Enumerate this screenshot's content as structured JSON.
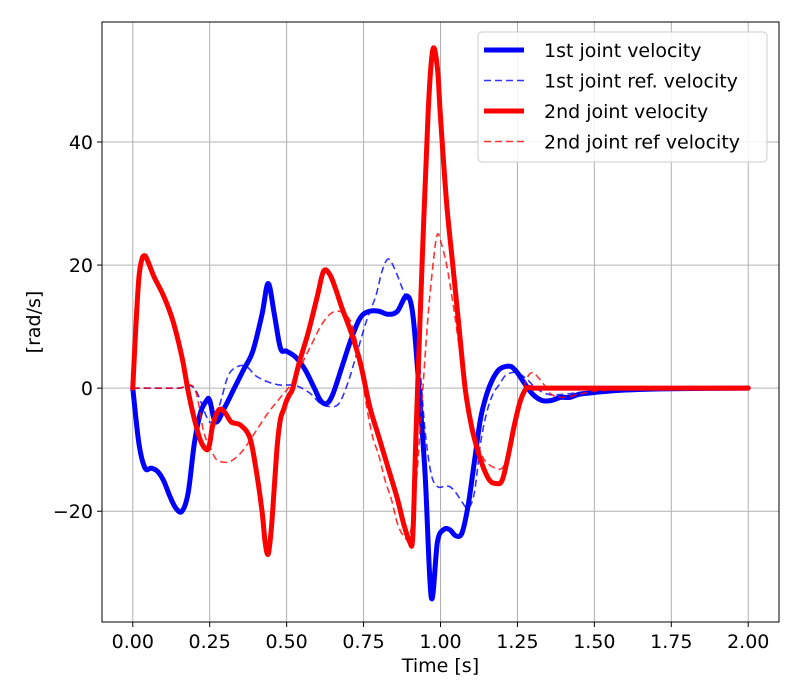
{
  "chart_data": {
    "type": "line",
    "title": "",
    "xlabel": "Time [s]",
    "ylabel": "[rad/s]",
    "xlim": [
      -0.1,
      2.1
    ],
    "ylim": [
      -38,
      59.5
    ],
    "xticks": [
      0.0,
      0.25,
      0.5,
      0.75,
      1.0,
      1.25,
      1.5,
      1.75,
      2.0
    ],
    "xtick_labels": [
      "0.00",
      "0.25",
      "0.50",
      "0.75",
      "1.00",
      "1.25",
      "1.50",
      "1.75",
      "2.00"
    ],
    "yticks": [
      -20,
      0,
      20,
      40
    ],
    "ytick_labels": [
      "−20",
      "0",
      "20",
      "40"
    ],
    "grid": true,
    "legend_position": "top-right",
    "series": [
      {
        "name": "1st joint velocity",
        "color": "#0000ff",
        "style": "solid",
        "x": [
          0.0,
          0.02,
          0.04,
          0.06,
          0.08,
          0.1,
          0.12,
          0.14,
          0.16,
          0.18,
          0.2,
          0.22,
          0.24,
          0.25,
          0.27,
          0.3,
          0.33,
          0.36,
          0.39,
          0.42,
          0.44,
          0.46,
          0.48,
          0.5,
          0.53,
          0.56,
          0.59,
          0.61,
          0.63,
          0.65,
          0.68,
          0.71,
          0.74,
          0.77,
          0.8,
          0.83,
          0.86,
          0.89,
          0.91,
          0.93,
          0.95,
          0.97,
          0.99,
          1.01,
          1.03,
          1.05,
          1.07,
          1.09,
          1.11,
          1.13,
          1.15,
          1.17,
          1.19,
          1.21,
          1.23,
          1.25,
          1.27,
          1.3,
          1.33,
          1.36,
          1.39,
          1.42,
          1.45,
          1.5,
          1.6,
          1.75,
          2.0
        ],
        "y": [
          0,
          -9,
          -13,
          -13,
          -13.5,
          -15,
          -17.5,
          -19.5,
          -20,
          -17,
          -9,
          -4,
          -2,
          -2,
          -5.5,
          -3,
          0,
          3,
          6,
          12,
          17,
          12,
          6.5,
          6,
          5,
          3,
          0,
          -2,
          -2.5,
          -1,
          3.5,
          8,
          11.5,
          12.5,
          12.5,
          12,
          12.5,
          15,
          12,
          0,
          -14,
          -34,
          -25,
          -23,
          -23,
          -24,
          -23.5,
          -19,
          -12,
          -5,
          -1,
          1.5,
          3,
          3.5,
          3.5,
          2.5,
          1,
          -1,
          -2,
          -2,
          -1.5,
          -1.5,
          -1,
          -0.7,
          -0.3,
          -0.1,
          0
        ]
      },
      {
        "name": "1st joint ref. velocity",
        "color": "#0000ff",
        "style": "dashed",
        "x": [
          0.0,
          0.05,
          0.1,
          0.15,
          0.2,
          0.25,
          0.28,
          0.31,
          0.34,
          0.37,
          0.4,
          0.44,
          0.48,
          0.52,
          0.55,
          0.58,
          0.61,
          0.64,
          0.67,
          0.7,
          0.73,
          0.76,
          0.79,
          0.81,
          0.83,
          0.85,
          0.87,
          0.89,
          0.91,
          0.93,
          0.95,
          0.97,
          0.99,
          1.01,
          1.03,
          1.05,
          1.07,
          1.09,
          1.11,
          1.13,
          1.15,
          1.17,
          1.19,
          1.21,
          1.23,
          1.25,
          1.28,
          1.31,
          1.35,
          1.4,
          1.45,
          1.5,
          1.6,
          1.75,
          2.0
        ],
        "y": [
          0,
          0,
          0,
          0,
          0,
          -5.5,
          -3,
          2,
          3.5,
          3.5,
          2,
          1,
          0.5,
          0.5,
          0,
          -1,
          -2.5,
          -3,
          -2.5,
          1,
          6,
          11,
          15,
          19,
          21,
          19.5,
          17,
          14.5,
          13,
          5,
          -7,
          -14,
          -16,
          -16,
          -16,
          -17,
          -18.5,
          -19.5,
          -17,
          -9,
          -4,
          -1,
          0.5,
          2,
          2.5,
          2.5,
          1.5,
          0,
          -1,
          -1,
          -0.7,
          -0.5,
          -0.3,
          -0.1,
          0
        ]
      },
      {
        "name": "2nd joint velocity",
        "color": "#ff0000",
        "style": "solid",
        "x": [
          0.0,
          0.01,
          0.02,
          0.03,
          0.04,
          0.05,
          0.07,
          0.1,
          0.13,
          0.16,
          0.18,
          0.2,
          0.22,
          0.24,
          0.25,
          0.26,
          0.28,
          0.3,
          0.32,
          0.35,
          0.38,
          0.4,
          0.42,
          0.43,
          0.44,
          0.45,
          0.46,
          0.47,
          0.48,
          0.49,
          0.5,
          0.51,
          0.52,
          0.54,
          0.57,
          0.6,
          0.62,
          0.64,
          0.66,
          0.68,
          0.71,
          0.74,
          0.77,
          0.8,
          0.83,
          0.86,
          0.88,
          0.9,
          0.91,
          0.92,
          0.94,
          0.96,
          0.975,
          0.99,
          1.0,
          1.02,
          1.04,
          1.06,
          1.08,
          1.1,
          1.12,
          1.14,
          1.16,
          1.18,
          1.2,
          1.22,
          1.24,
          1.26,
          1.28,
          1.3,
          1.33,
          1.36,
          1.4,
          1.45,
          1.5,
          1.6,
          1.75,
          2.0
        ],
        "y": [
          0,
          10,
          18,
          21,
          21.5,
          20.5,
          18,
          15,
          11,
          5,
          -0.5,
          -5,
          -8.5,
          -10,
          -9,
          -6,
          -3.5,
          -4,
          -5.5,
          -6,
          -8,
          -13,
          -20,
          -25,
          -27,
          -23,
          -16,
          -9,
          -5,
          -3.5,
          -2,
          -1,
          0,
          4,
          9,
          15,
          19,
          18.5,
          16,
          13,
          9,
          4,
          -3,
          -8,
          -13,
          -18,
          -22,
          -25,
          -24,
          -8,
          20,
          45,
          55,
          52,
          44,
          30,
          20,
          10,
          0,
          -6,
          -10,
          -13,
          -15,
          -15.5,
          -15,
          -11,
          -6,
          -2,
          0,
          0,
          0,
          0,
          0,
          0,
          0,
          0,
          0,
          0
        ]
      },
      {
        "name": "2nd joint ref velocity",
        "color": "#ff0000",
        "style": "dashed",
        "x": [
          0.0,
          0.05,
          0.1,
          0.15,
          0.2,
          0.23,
          0.25,
          0.27,
          0.29,
          0.31,
          0.33,
          0.36,
          0.4,
          0.44,
          0.48,
          0.52,
          0.55,
          0.58,
          0.61,
          0.64,
          0.67,
          0.7,
          0.72,
          0.74,
          0.76,
          0.78,
          0.8,
          0.82,
          0.84,
          0.86,
          0.88,
          0.9,
          0.92,
          0.94,
          0.96,
          0.98,
          0.99,
          1.0,
          1.02,
          1.04,
          1.06,
          1.08,
          1.1,
          1.12,
          1.14,
          1.16,
          1.18,
          1.2,
          1.22,
          1.24,
          1.26,
          1.28,
          1.3,
          1.33,
          1.36,
          1.4,
          1.45,
          1.5,
          1.6,
          1.75,
          2.0
        ],
        "y": [
          0,
          0,
          0,
          0,
          0,
          -7,
          -9.5,
          -11.5,
          -12,
          -12,
          -11.5,
          -10,
          -7,
          -4,
          -1.5,
          1,
          4,
          7,
          10,
          12,
          12.5,
          11.5,
          9,
          4,
          -3,
          -8,
          -11,
          -15,
          -18,
          -22,
          -24,
          -24,
          -16,
          -2,
          12,
          22,
          25,
          24,
          20,
          14,
          7,
          0,
          -6,
          -9,
          -11.5,
          -12.5,
          -13,
          -13,
          -11,
          -7,
          -2,
          1.5,
          2.5,
          1,
          -1,
          -1.5,
          -1,
          -0.5,
          -0.2,
          0,
          0
        ]
      }
    ]
  }
}
